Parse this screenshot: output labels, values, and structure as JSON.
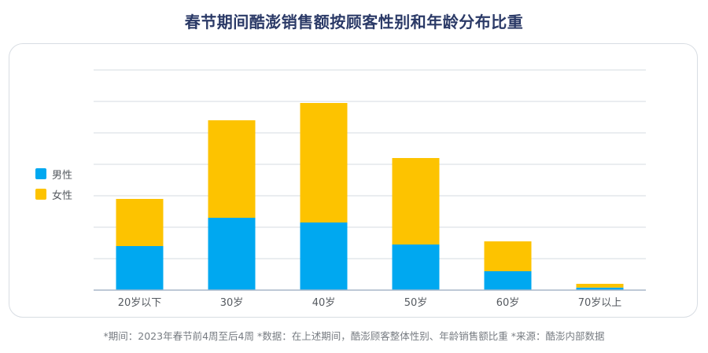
{
  "title": "春节期间酷澎销售额按顾客性别和年龄分布比重",
  "footnote": "*期间：2023年春节前4周至后4周 *数据：在上述期间，酷澎顾客整体性别、年龄销售额比重 *来源：酷澎内部数据",
  "colors": {
    "male": "#00a8f0",
    "female": "#fdc300",
    "grid": "#d6dbe1",
    "axis": "#a9b7c9"
  },
  "chart_data": {
    "type": "bar",
    "stacked": true,
    "categories": [
      "20岁以下",
      "30岁",
      "40岁",
      "50岁",
      "60岁",
      "70岁以上"
    ],
    "series": [
      {
        "name": "男性",
        "values": [
          14,
          23,
          21.5,
          14.5,
          6,
          0.8
        ]
      },
      {
        "name": "女性",
        "values": [
          15,
          31,
          38,
          27.5,
          9.5,
          1.2
        ]
      }
    ],
    "ylim": [
      0,
      70
    ],
    "grid": true,
    "legend_position": "left",
    "yticks_visible": false
  }
}
